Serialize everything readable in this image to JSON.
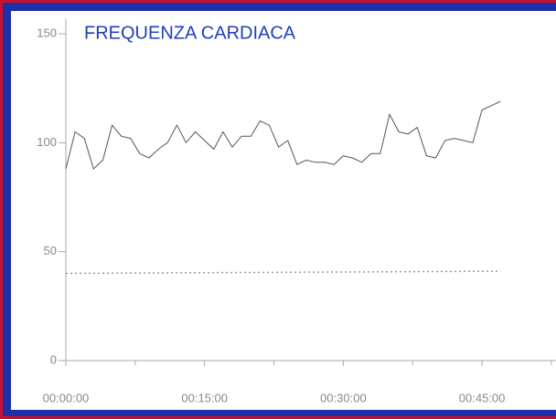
{
  "chart_data": {
    "type": "line",
    "title": "FREQUENZA CARDIACA",
    "series": [
      {
        "color": "#555555",
        "x": [
          0,
          1,
          2,
          3,
          4,
          5,
          6,
          7,
          8,
          9,
          10,
          11,
          12,
          13,
          14,
          15,
          16,
          17,
          18,
          19,
          20,
          21,
          22,
          23,
          24,
          25,
          26,
          27,
          28,
          29,
          30,
          31,
          32,
          33,
          34,
          35,
          36,
          37,
          38,
          39,
          40,
          41,
          42,
          43,
          44,
          45,
          46,
          47
        ],
        "values": [
          88,
          105,
          102,
          88,
          92,
          108,
          103,
          102,
          95,
          93,
          97,
          100,
          108,
          100,
          105,
          101,
          97,
          105,
          98,
          103,
          103,
          110,
          108,
          98,
          101,
          90,
          92,
          91,
          91,
          90,
          94,
          93,
          91,
          95,
          95,
          113,
          105,
          104,
          107,
          94,
          93,
          101,
          102,
          101,
          100,
          115,
          117,
          119
        ]
      },
      {
        "color": "#999999",
        "dashed": true,
        "x": [
          0,
          47
        ],
        "values": [
          40,
          41
        ]
      }
    ],
    "xlim": [
      0,
      53
    ],
    "xticks": [
      {
        "value": 0,
        "label": "00:00:00"
      },
      {
        "value": 15,
        "label": "00:15:00"
      },
      {
        "value": 30,
        "label": "00:30:00"
      },
      {
        "value": 45,
        "label": "00:45:00"
      }
    ],
    "minor_xticks": [
      7.5,
      22.5,
      37.5,
      52.5
    ],
    "ylim": [
      0,
      160
    ],
    "yticks": [
      0,
      50,
      100,
      150
    ]
  }
}
